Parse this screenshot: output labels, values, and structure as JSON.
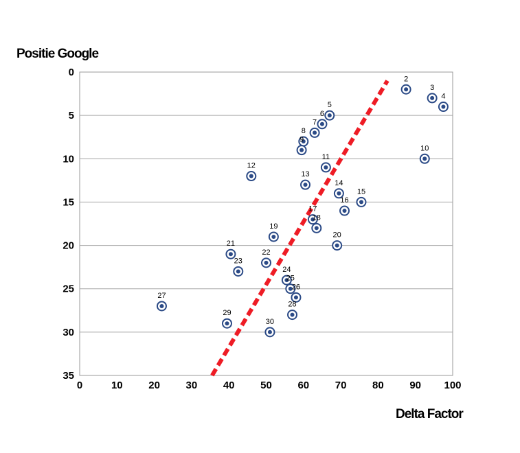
{
  "chart_data": {
    "type": "scatter",
    "xlabel": "Delta Factor",
    "ylabel": "Positie Google",
    "xlim": [
      0,
      100
    ],
    "ylim": [
      0,
      35
    ],
    "y_inverted": true,
    "x_ticks": [
      0,
      10,
      20,
      30,
      40,
      50,
      60,
      70,
      80,
      90,
      100
    ],
    "y_ticks": [
      0,
      5,
      10,
      15,
      20,
      25,
      30,
      35
    ],
    "grid": "horizontal",
    "marker_color": "#2b4a86",
    "trendline": {
      "color": "#ee1c25",
      "style": "dashed",
      "from": [
        35.5,
        35
      ],
      "to": [
        82.5,
        1
      ]
    },
    "points": [
      {
        "label": "2",
        "x": 87.5,
        "y": 2
      },
      {
        "label": "3",
        "x": 94.5,
        "y": 3
      },
      {
        "label": "4",
        "x": 97.5,
        "y": 4
      },
      {
        "label": "5",
        "x": 67,
        "y": 5
      },
      {
        "label": "6",
        "x": 65,
        "y": 6
      },
      {
        "label": "7",
        "x": 63,
        "y": 7
      },
      {
        "label": "8",
        "x": 60,
        "y": 8
      },
      {
        "label": "9",
        "x": 59.5,
        "y": 9
      },
      {
        "label": "10",
        "x": 92.5,
        "y": 10
      },
      {
        "label": "11",
        "x": 66,
        "y": 11
      },
      {
        "label": "12",
        "x": 46,
        "y": 12
      },
      {
        "label": "13",
        "x": 60.5,
        "y": 13
      },
      {
        "label": "14",
        "x": 69.5,
        "y": 14
      },
      {
        "label": "15",
        "x": 75.5,
        "y": 15
      },
      {
        "label": "16",
        "x": 71,
        "y": 16
      },
      {
        "label": "17",
        "x": 62.5,
        "y": 17
      },
      {
        "label": "18",
        "x": 63.5,
        "y": 18
      },
      {
        "label": "19",
        "x": 52,
        "y": 19
      },
      {
        "label": "20",
        "x": 69,
        "y": 20
      },
      {
        "label": "21",
        "x": 40.5,
        "y": 21
      },
      {
        "label": "22",
        "x": 50,
        "y": 22
      },
      {
        "label": "23",
        "x": 42.5,
        "y": 23
      },
      {
        "label": "24",
        "x": 55.5,
        "y": 24
      },
      {
        "label": "25",
        "x": 56.5,
        "y": 25
      },
      {
        "label": "26",
        "x": 58,
        "y": 26
      },
      {
        "label": "27",
        "x": 22,
        "y": 27
      },
      {
        "label": "28",
        "x": 57,
        "y": 28
      },
      {
        "label": "29",
        "x": 39.5,
        "y": 29
      },
      {
        "label": "30",
        "x": 51,
        "y": 30
      }
    ]
  }
}
